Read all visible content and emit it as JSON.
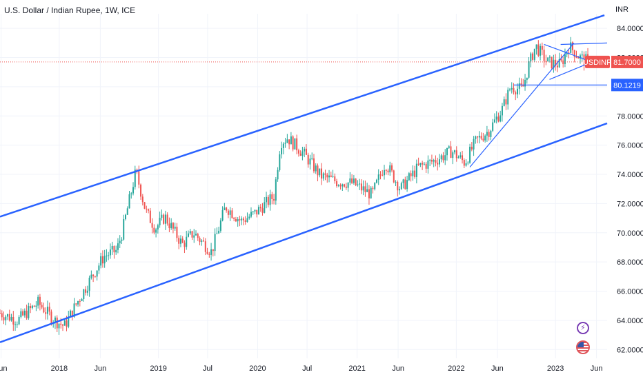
{
  "header": {
    "title": "U.S. Dollar / Indian Rupee, 1W, ICE",
    "currency": "INR"
  },
  "colors": {
    "up": "#26a69a",
    "down": "#ef5350",
    "trend": "#2962ff",
    "grid": "#f0f3fa",
    "price_line": "#ef5350",
    "level_badge": "#2962ff"
  },
  "icons": [
    "lightning-icon",
    "us-flag-icon"
  ],
  "chart_data": {
    "type": "candlestick",
    "title": "U.S. Dollar / Indian Rupee, 1W, ICE",
    "symbol": "USDINR",
    "interval": "1W",
    "ylabel": "INR",
    "ylim": [
      61.4,
      85.0
    ],
    "y_ticks": [
      "62.0000",
      "64.0000",
      "66.0000",
      "68.0000",
      "70.0000",
      "72.0000",
      "74.0000",
      "76.0000",
      "78.0000",
      "80.0000",
      "82.0000",
      "84.0000"
    ],
    "x_range": [
      "2017-05-28",
      "2023-07-10"
    ],
    "x_ticks": [
      {
        "date": "2017-06-01",
        "label": "Jun"
      },
      {
        "date": "2018-01-01",
        "label": "2018"
      },
      {
        "date": "2018-06-01",
        "label": "Jun"
      },
      {
        "date": "2019-01-01",
        "label": "2019"
      },
      {
        "date": "2019-07-01",
        "label": "Jul"
      },
      {
        "date": "2020-01-01",
        "label": "2020"
      },
      {
        "date": "2020-07-01",
        "label": "Jul"
      },
      {
        "date": "2021-01-01",
        "label": "2021"
      },
      {
        "date": "2021-06-01",
        "label": "Jun"
      },
      {
        "date": "2022-01-01",
        "label": "2022"
      },
      {
        "date": "2022-06-01",
        "label": "Jun"
      },
      {
        "date": "2023-01-01",
        "label": "2023"
      },
      {
        "date": "2023-06-01",
        "label": "Jun"
      }
    ],
    "price_anchors": [
      [
        "2017-05-28",
        64.5
      ],
      [
        "2017-08-01",
        64.0
      ],
      [
        "2017-10-15",
        65.2
      ],
      [
        "2017-12-15",
        64.0
      ],
      [
        "2018-01-20",
        63.6
      ],
      [
        "2018-03-01",
        65.0
      ],
      [
        "2018-05-01",
        67.0
      ],
      [
        "2018-06-15",
        68.4
      ],
      [
        "2018-08-01",
        68.8
      ],
      [
        "2018-08-20",
        70.0
      ],
      [
        "2018-10-10",
        74.2
      ],
      [
        "2018-11-15",
        71.5
      ],
      [
        "2018-12-20",
        70.3
      ],
      [
        "2019-01-25",
        71.1
      ],
      [
        "2019-03-30",
        69.2
      ],
      [
        "2019-05-10",
        70.0
      ],
      [
        "2019-07-15",
        68.7
      ],
      [
        "2019-09-05",
        71.8
      ],
      [
        "2019-11-01",
        70.8
      ],
      [
        "2019-12-20",
        71.3
      ],
      [
        "2020-03-01",
        72.5
      ],
      [
        "2020-03-25",
        76.2
      ],
      [
        "2020-04-20",
        76.5
      ],
      [
        "2020-06-15",
        75.5
      ],
      [
        "2020-08-20",
        73.9
      ],
      [
        "2020-10-20",
        73.5
      ],
      [
        "2020-12-15",
        73.4
      ],
      [
        "2021-02-25",
        72.6
      ],
      [
        "2021-04-15",
        74.8
      ],
      [
        "2021-06-10",
        73.0
      ],
      [
        "2021-08-15",
        74.5
      ],
      [
        "2021-10-20",
        75.0
      ],
      [
        "2021-12-15",
        75.6
      ],
      [
        "2022-02-01",
        74.8
      ],
      [
        "2022-03-15",
        76.3
      ],
      [
        "2022-05-01",
        77.0
      ],
      [
        "2022-06-20",
        78.5
      ],
      [
        "2022-07-20",
        80.0
      ],
      [
        "2022-09-01",
        79.8
      ],
      [
        "2022-09-25",
        81.5
      ],
      [
        "2022-10-20",
        82.8
      ],
      [
        "2022-12-01",
        81.7
      ],
      [
        "2023-01-20",
        81.5
      ],
      [
        "2023-02-20",
        82.8
      ],
      [
        "2023-04-01",
        82.0
      ],
      [
        "2023-05-05",
        81.7
      ]
    ],
    "trendlines": [
      {
        "name": "channel-upper",
        "from": [
          "2017-05-28",
          71.1
        ],
        "to": [
          "2023-06-30",
          84.9
        ]
      },
      {
        "name": "channel-lower",
        "from": [
          "2017-05-28",
          62.5
        ],
        "to": [
          "2023-07-10",
          77.5
        ]
      },
      {
        "name": "triangle-upper",
        "from": [
          "2022-11-20",
          82.9
        ],
        "to": [
          "2023-05-15",
          81.7
        ]
      },
      {
        "name": "triangle-lower",
        "from": [
          "2022-12-10",
          80.5
        ],
        "to": [
          "2023-05-15",
          81.7
        ]
      },
      {
        "name": "rising-support",
        "from": [
          "2022-02-20",
          74.5
        ],
        "to": [
          "2023-03-10",
          83.0
        ]
      },
      {
        "name": "resistance-ray",
        "from": [
          "2023-01-20",
          82.9
        ],
        "to": [
          "2023-07-10",
          83.0
        ]
      },
      {
        "name": "level-ray",
        "from": [
          "2022-08-01",
          80.12
        ],
        "to": [
          "2023-07-10",
          80.12
        ]
      }
    ],
    "last_price": {
      "symbol": "USDINR",
      "value": 81.7,
      "label": "81.7000"
    },
    "level": {
      "value": 80.1219,
      "label": "80.1219"
    }
  }
}
